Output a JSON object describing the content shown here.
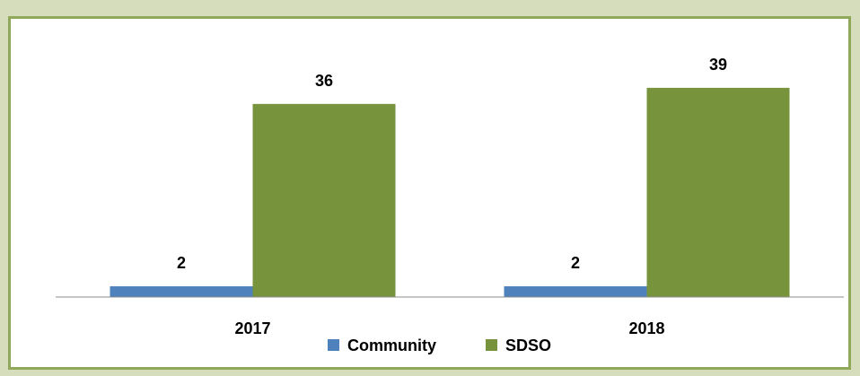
{
  "chart_data": {
    "type": "bar",
    "categories": [
      "2017",
      "2018"
    ],
    "series": [
      {
        "name": "Community",
        "values": [
          2,
          2
        ],
        "color": "#4f81bd"
      },
      {
        "name": "SDSO",
        "values": [
          36,
          39
        ],
        "color": "#77933c"
      }
    ],
    "ylim": [
      0,
      44
    ],
    "grid": false,
    "legend_position": "bottom",
    "show_data_labels": true
  }
}
